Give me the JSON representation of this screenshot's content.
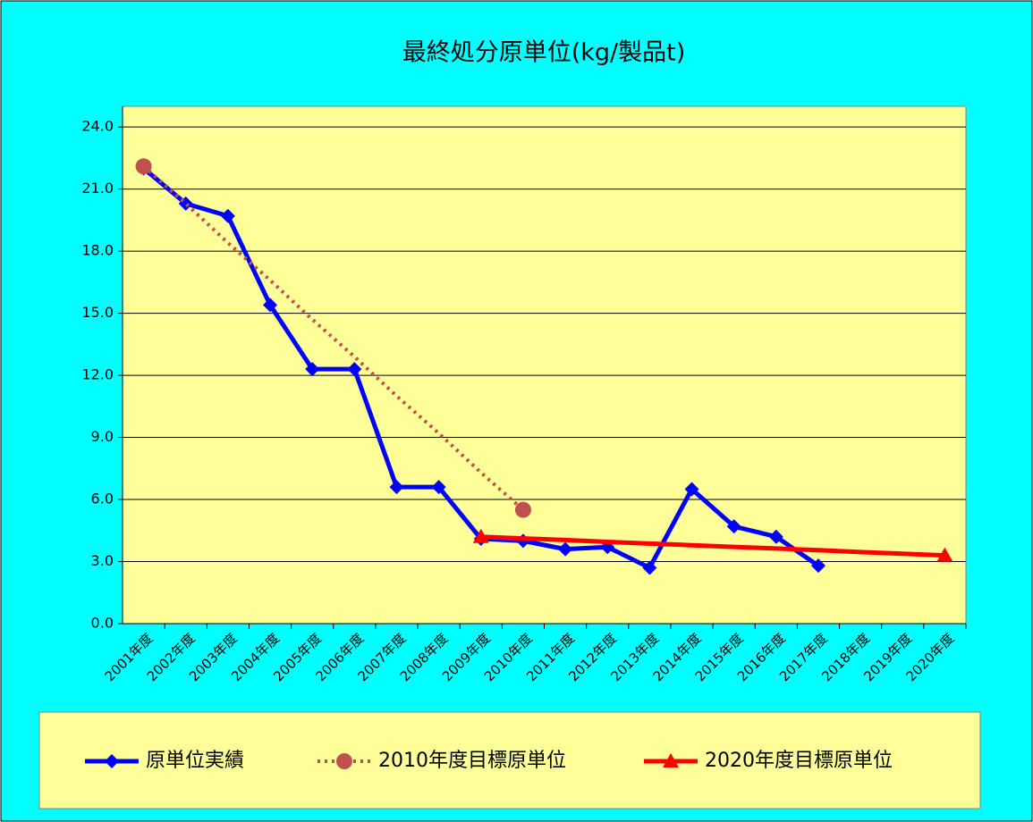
{
  "chart_data": {
    "type": "line",
    "title": "最終処分原単位(kg/製品t)",
    "categories": [
      "2001年度",
      "2002年度",
      "2003年度",
      "2004年度",
      "2005年度",
      "2006年度",
      "2007年度",
      "2008年度",
      "2009年度",
      "2010年度",
      "2011年度",
      "2012年度",
      "2013年度",
      "2014年度",
      "2015年度",
      "2016年度",
      "2017年度",
      "2018年度",
      "2019年度",
      "2020年度"
    ],
    "series": [
      {
        "name": "原単位実績",
        "color": "#0000ff",
        "marker": "diamond",
        "style": "solid",
        "values": [
          22.0,
          20.3,
          19.7,
          15.4,
          12.3,
          12.3,
          6.6,
          6.6,
          4.1,
          4.0,
          3.6,
          3.7,
          2.7,
          6.5,
          4.7,
          4.2,
          2.8,
          null,
          null,
          null
        ]
      },
      {
        "name": "2010年度目標原単位",
        "color": "#c0504d",
        "marker": "circle",
        "style": "dotted",
        "values": [
          22.1,
          20.3,
          18.4,
          16.6,
          14.7,
          12.9,
          11.0,
          9.2,
          7.3,
          5.5,
          null,
          null,
          null,
          null,
          null,
          null,
          null,
          null,
          null,
          null
        ]
      },
      {
        "name": "2020年度目標原単位",
        "color": "#ff0000",
        "marker": "triangle",
        "style": "solid",
        "values": [
          null,
          null,
          null,
          null,
          null,
          null,
          null,
          null,
          4.2,
          4.12,
          4.04,
          3.95,
          3.87,
          3.79,
          3.71,
          3.63,
          3.55,
          3.46,
          3.38,
          3.3
        ]
      }
    ],
    "ylim": [
      0,
      25
    ],
    "yticks": [
      {
        "value": 0,
        "label": "0.0"
      },
      {
        "value": 3,
        "label": "3.0"
      },
      {
        "value": 6,
        "label": "6.0"
      },
      {
        "value": 9,
        "label": "9.0"
      },
      {
        "value": 12,
        "label": "12.0"
      },
      {
        "value": 15,
        "label": "15.0"
      },
      {
        "value": 18,
        "label": "18.0"
      },
      {
        "value": 21,
        "label": "21.0"
      },
      {
        "value": 24,
        "label": "24.0"
      }
    ],
    "grid": true,
    "legend": "bottom"
  }
}
